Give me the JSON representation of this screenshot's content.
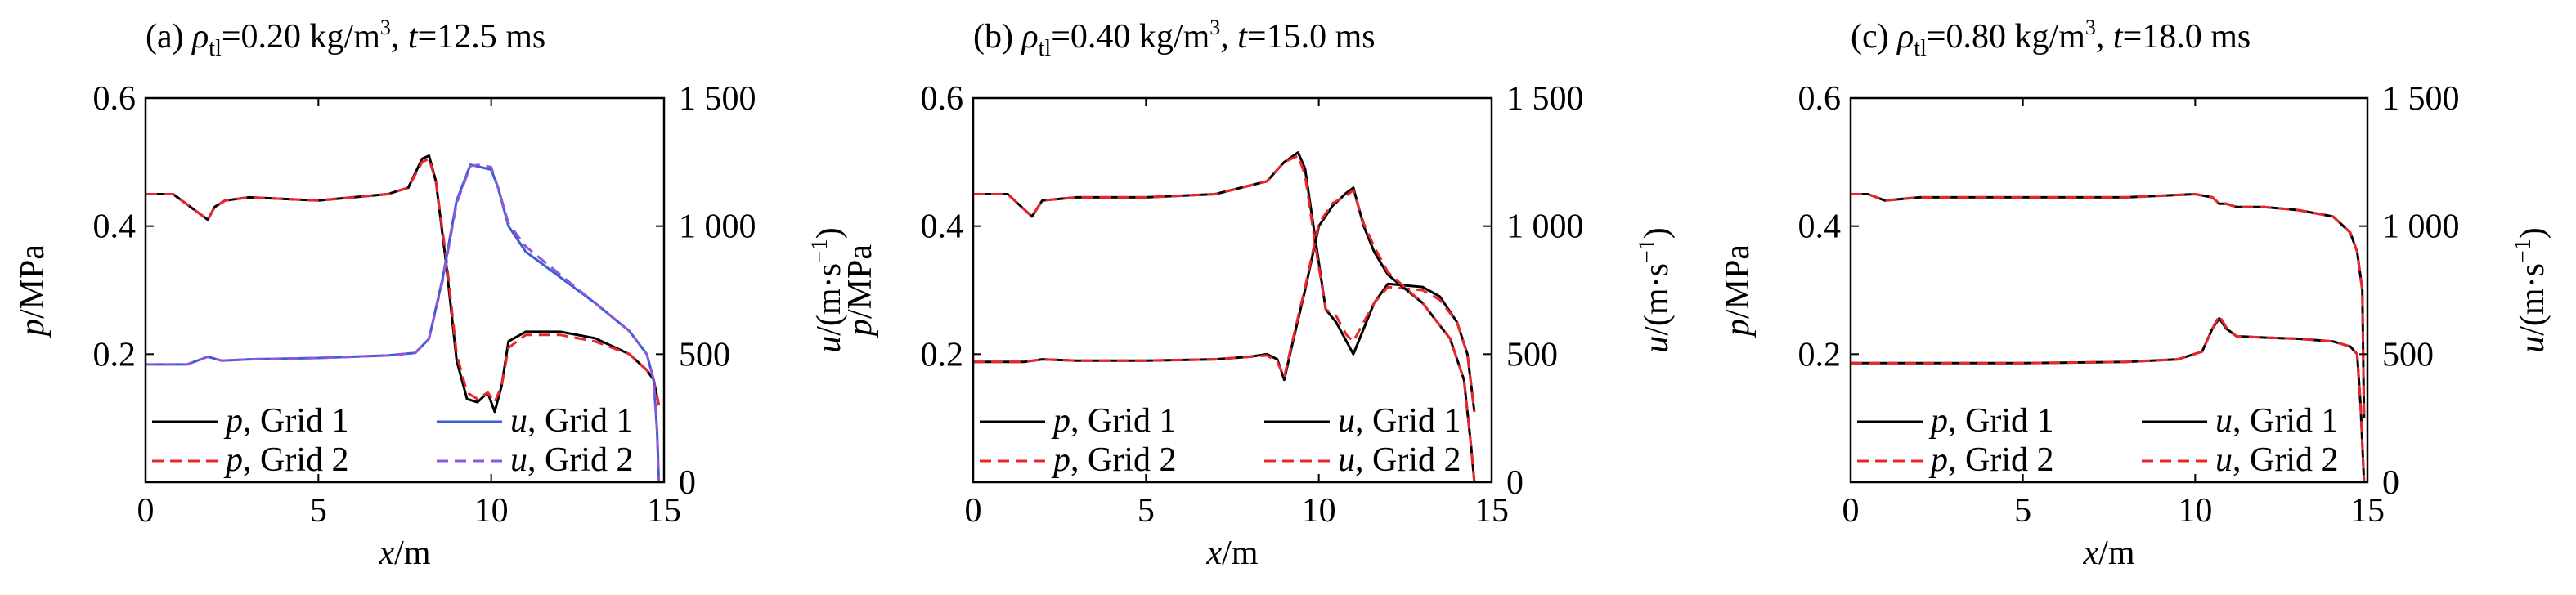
{
  "figure": {
    "panels": [
      {
        "title_prefix": "(a) ",
        "title_rho": "ρ",
        "title_rho_sub": "tl",
        "title_eq": "=0.20 kg/m",
        "title_exp": "3",
        "title_sep": ", ",
        "title_t": "t",
        "title_rest": "=12.5 ms"
      },
      {
        "title_prefix": "(b) ",
        "title_rho": "ρ",
        "title_rho_sub": "tl",
        "title_eq": "=0.40 kg/m",
        "title_exp": "3",
        "title_sep": ", ",
        "title_t": "t",
        "title_rest": "=15.0 ms"
      },
      {
        "title_prefix": "(c) ",
        "title_rho": "ρ",
        "title_rho_sub": "tl",
        "title_eq": "=0.80 kg/m",
        "title_exp": "3",
        "title_sep": ", ",
        "title_t": "t",
        "title_rest": "=18.0 ms"
      }
    ],
    "axes": {
      "xlabel_var": "x",
      "xlabel_unit": "/m",
      "ylabel_left_var": "p",
      "ylabel_left_unit": "/MPa",
      "ylabel_right_var": "u",
      "ylabel_right_unit": "/(m·s",
      "ylabel_right_exp": "−1",
      "ylabel_right_close": ")",
      "x_ticks": [
        "0",
        "5",
        "10",
        "15"
      ],
      "y_left_ticks": [
        "0.2",
        "0.4",
        "0.6"
      ],
      "y_right_ticks": [
        "0",
        "500",
        "1 000",
        "1 500"
      ]
    },
    "legend": {
      "sep": ", ",
      "grid1": "Grid 1",
      "grid2": "Grid 2",
      "var_p": "p",
      "var_u": "u"
    },
    "colors": {
      "p_grid1": "#000000",
      "p_grid2": "#e8262b",
      "u_grid1_a": "#3f5bd6",
      "u_grid2_a": "#8a5ad8",
      "u_grid1_bc": "#000000",
      "u_grid2_bc": "#e8262b"
    }
  },
  "chart_data": [
    {
      "type": "line",
      "xlabel": "x/m",
      "ylabel_left": "p/MPa",
      "ylabel_right": "u/(m·s−1)",
      "xlim": [
        0,
        15
      ],
      "ylim_left": [
        0,
        0.6
      ],
      "ylim_right": [
        0,
        1500
      ],
      "legend_position": "bottom-left",
      "series": [
        {
          "name": "p, Grid 1",
          "axis": "left",
          "style": "solid",
          "x": [
            0,
            0.8,
            1.3,
            1.8,
            2.0,
            2.3,
            3,
            5,
            7,
            7.6,
            8.0,
            8.2,
            8.4,
            8.7,
            9.0,
            9.3,
            9.6,
            9.9,
            10.1,
            10.3,
            10.5,
            11,
            12,
            13,
            14,
            14.5,
            14.7,
            14.85
          ],
          "y": [
            0.45,
            0.45,
            0.43,
            0.41,
            0.43,
            0.44,
            0.445,
            0.44,
            0.45,
            0.46,
            0.505,
            0.51,
            0.47,
            0.34,
            0.19,
            0.13,
            0.125,
            0.14,
            0.11,
            0.15,
            0.22,
            0.235,
            0.235,
            0.225,
            0.2,
            0.175,
            0.16,
            0.12
          ]
        },
        {
          "name": "p, Grid 2",
          "axis": "left",
          "style": "dashed",
          "x": [
            0,
            0.8,
            1.3,
            1.8,
            2.0,
            2.3,
            3,
            5,
            7,
            7.6,
            8.0,
            8.2,
            8.4,
            8.7,
            9.0,
            9.3,
            9.6,
            9.9,
            10.1,
            10.3,
            10.5,
            11,
            12,
            13,
            14,
            14.5,
            14.7,
            14.85
          ],
          "y": [
            0.45,
            0.45,
            0.43,
            0.41,
            0.43,
            0.44,
            0.445,
            0.44,
            0.45,
            0.46,
            0.5,
            0.505,
            0.47,
            0.35,
            0.2,
            0.14,
            0.13,
            0.14,
            0.125,
            0.15,
            0.21,
            0.23,
            0.23,
            0.22,
            0.2,
            0.175,
            0.16,
            0.12
          ]
        },
        {
          "name": "u, Grid 1",
          "axis": "right",
          "style": "solid",
          "x": [
            0,
            1.2,
            1.8,
            2.2,
            3,
            5,
            7,
            7.8,
            8.2,
            8.6,
            9.0,
            9.4,
            9.7,
            10.0,
            10.2,
            10.5,
            11,
            12,
            13,
            14,
            14.5,
            14.7,
            14.8,
            14.85
          ],
          "y": [
            460,
            460,
            490,
            475,
            480,
            485,
            495,
            505,
            560,
            800,
            1100,
            1240,
            1230,
            1220,
            1150,
            1000,
            900,
            800,
            700,
            590,
            500,
            400,
            200,
            0
          ]
        },
        {
          "name": "u, Grid 2",
          "axis": "right",
          "style": "dashed",
          "x": [
            0,
            1.2,
            1.8,
            2.2,
            3,
            5,
            7,
            7.8,
            8.2,
            8.6,
            9.0,
            9.4,
            9.7,
            10.0,
            10.2,
            10.5,
            11,
            12,
            13,
            14,
            14.5,
            14.7,
            14.8,
            14.85
          ],
          "y": [
            460,
            460,
            490,
            475,
            480,
            485,
            495,
            505,
            560,
            790,
            1090,
            1235,
            1240,
            1230,
            1150,
            1010,
            920,
            810,
            700,
            590,
            500,
            400,
            200,
            0
          ]
        }
      ]
    },
    {
      "type": "line",
      "xlabel": "x/m",
      "ylabel_left": "p/MPa",
      "ylabel_right": "u/(m·s−1)",
      "xlim": [
        0,
        15
      ],
      "ylim_left": [
        0,
        0.6
      ],
      "ylim_right": [
        0,
        1500
      ],
      "legend_position": "bottom-left",
      "series": [
        {
          "name": "p, Grid 1",
          "axis": "left",
          "style": "solid",
          "x": [
            0,
            1.0,
            1.4,
            1.7,
            2.0,
            3,
            5,
            7,
            8.5,
            9.0,
            9.4,
            9.6,
            9.9,
            10.2,
            10.5,
            10.8,
            11.0,
            11.3,
            11.6,
            12.0,
            13,
            13.5,
            14.0,
            14.3,
            14.5
          ],
          "y": [
            0.45,
            0.45,
            0.43,
            0.415,
            0.44,
            0.445,
            0.445,
            0.45,
            0.47,
            0.5,
            0.515,
            0.49,
            0.38,
            0.27,
            0.25,
            0.22,
            0.2,
            0.24,
            0.28,
            0.31,
            0.305,
            0.29,
            0.25,
            0.2,
            0.11
          ]
        },
        {
          "name": "p, Grid 2",
          "axis": "left",
          "style": "dashed",
          "x": [
            0,
            1.0,
            1.4,
            1.7,
            2.0,
            3,
            5,
            7,
            8.5,
            9.0,
            9.4,
            9.6,
            9.9,
            10.2,
            10.5,
            10.8,
            11.0,
            11.3,
            11.6,
            12.0,
            13,
            13.5,
            14.0,
            14.3,
            14.5
          ],
          "y": [
            0.45,
            0.45,
            0.43,
            0.415,
            0.44,
            0.445,
            0.445,
            0.45,
            0.47,
            0.5,
            0.51,
            0.48,
            0.37,
            0.27,
            0.26,
            0.23,
            0.22,
            0.25,
            0.28,
            0.305,
            0.3,
            0.285,
            0.25,
            0.2,
            0.11
          ]
        },
        {
          "name": "u, Grid 1",
          "axis": "right",
          "style": "solid",
          "x": [
            0,
            1.5,
            2.0,
            3,
            5,
            7,
            8.0,
            8.5,
            8.8,
            9.0,
            9.2,
            9.6,
            10.0,
            10.4,
            10.8,
            11.0,
            11.3,
            11.6,
            12,
            13,
            13.8,
            14.2,
            14.4,
            14.5
          ],
          "y": [
            470,
            470,
            480,
            475,
            475,
            480,
            490,
            500,
            480,
            400,
            520,
            750,
            1000,
            1080,
            1130,
            1150,
            1000,
            900,
            810,
            700,
            560,
            400,
            150,
            0
          ]
        },
        {
          "name": "u, Grid 2",
          "axis": "right",
          "style": "dashed",
          "x": [
            0,
            1.5,
            2.0,
            3,
            5,
            7,
            8.0,
            8.5,
            8.8,
            9.0,
            9.2,
            9.6,
            10.0,
            10.4,
            10.8,
            11.0,
            11.3,
            11.6,
            12,
            13,
            13.8,
            14.2,
            14.4,
            14.5
          ],
          "y": [
            470,
            470,
            480,
            475,
            475,
            480,
            490,
            495,
            470,
            410,
            530,
            760,
            1010,
            1090,
            1120,
            1140,
            1010,
            920,
            820,
            700,
            560,
            400,
            150,
            0
          ]
        }
      ]
    },
    {
      "type": "line",
      "xlabel": "x/m",
      "ylabel_left": "p/MPa",
      "ylabel_right": "u/(m·s−1)",
      "xlim": [
        0,
        15
      ],
      "ylim_left": [
        0,
        0.6
      ],
      "ylim_right": [
        0,
        1500
      ],
      "legend_position": "bottom-left",
      "series": [
        {
          "name": "p, Grid 1",
          "axis": "left",
          "style": "solid",
          "x": [
            0,
            0.5,
            1.0,
            2,
            5,
            8,
            10,
            10.5,
            10.7,
            10.9,
            11.2,
            12,
            13,
            14,
            14.5,
            14.7,
            14.85,
            14.9
          ],
          "y": [
            0.45,
            0.45,
            0.44,
            0.445,
            0.445,
            0.445,
            0.45,
            0.445,
            0.435,
            0.435,
            0.43,
            0.43,
            0.425,
            0.415,
            0.39,
            0.36,
            0.3,
            0.1
          ]
        },
        {
          "name": "p, Grid 2",
          "axis": "left",
          "style": "dashed",
          "x": [
            0,
            0.5,
            1.0,
            2,
            5,
            8,
            10,
            10.5,
            10.7,
            10.9,
            11.2,
            12,
            13,
            14,
            14.5,
            14.7,
            14.85,
            14.9
          ],
          "y": [
            0.45,
            0.45,
            0.44,
            0.445,
            0.445,
            0.445,
            0.45,
            0.445,
            0.435,
            0.435,
            0.43,
            0.43,
            0.425,
            0.415,
            0.39,
            0.36,
            0.3,
            0.1
          ]
        },
        {
          "name": "u, Grid 1",
          "axis": "right",
          "style": "solid",
          "x": [
            0,
            2,
            5,
            8,
            9.5,
            10.2,
            10.5,
            10.7,
            10.9,
            11.2,
            12,
            13,
            14,
            14.5,
            14.7,
            14.8,
            14.9
          ],
          "y": [
            465,
            465,
            465,
            470,
            480,
            510,
            600,
            640,
            600,
            570,
            565,
            560,
            550,
            530,
            500,
            300,
            0
          ]
        },
        {
          "name": "u, Grid 2",
          "axis": "right",
          "style": "dashed",
          "x": [
            0,
            2,
            5,
            8,
            9.5,
            10.2,
            10.5,
            10.7,
            10.9,
            11.2,
            12,
            13,
            14,
            14.5,
            14.7,
            14.8,
            14.9
          ],
          "y": [
            465,
            465,
            465,
            470,
            480,
            510,
            600,
            650,
            605,
            570,
            565,
            560,
            550,
            530,
            500,
            300,
            0
          ]
        }
      ]
    }
  ]
}
